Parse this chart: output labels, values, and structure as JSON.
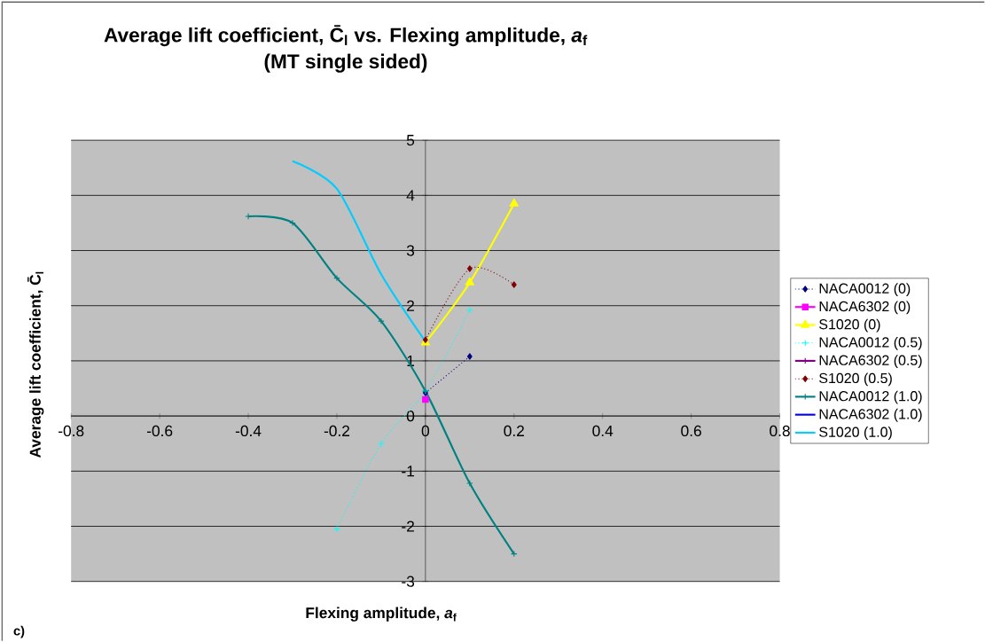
{
  "chart_data": {
    "type": "line",
    "title": "Average lift coefficient, C̄$_{l}$ vs. Flexing amplitude, *a*$_{f}$",
    "subtitle": "(MT single sided)",
    "xlabel": "Flexing amplitude, *a*$_{f}$",
    "ylabel": "Average lift coefficient, C̄$_{l}$",
    "annotations": [
      "c)"
    ],
    "xlim": [
      -0.8,
      0.8
    ],
    "xticks": [
      -0.8,
      -0.6,
      -0.4,
      -0.2,
      0,
      0.2,
      0.4,
      0.6,
      0.8
    ],
    "ylim": [
      -3,
      5
    ],
    "yticks": [
      -3,
      -2,
      -1,
      0,
      1,
      2,
      3,
      4,
      5
    ],
    "grid": "y",
    "legend": "right",
    "series": [
      {
        "name": "NACA0012 (0)",
        "color": "#000080",
        "marker": "diamond",
        "line_style": "dotted",
        "x": [
          0,
          0.1
        ],
        "values": [
          0.42,
          1.08
        ]
      },
      {
        "name": "NACA6302 (0)",
        "color": "#ff00ff",
        "marker": "square",
        "line_style": "solid",
        "x": [
          0
        ],
        "values": [
          0.3
        ]
      },
      {
        "name": "S1020 (0)",
        "color": "#ffff00",
        "marker": "triangle",
        "line_style": "solid",
        "x": [
          0,
          0.1,
          0.2
        ],
        "values": [
          1.33,
          2.42,
          3.85
        ]
      },
      {
        "name": "NACA0012 (0.5)",
        "color": "#00ffff",
        "marker": "cross",
        "line_style": "dotted",
        "x": [
          -0.2,
          -0.1,
          0,
          0.1
        ],
        "values": [
          -2.05,
          -0.5,
          0.45,
          1.92
        ]
      },
      {
        "name": "NACA6302 (0.5)",
        "color": "#800080",
        "marker": "cross",
        "line_style": "solid",
        "values": [
          null
        ]
      },
      {
        "name": "S1020 (0.5)",
        "color": "#800000",
        "marker": "diamond",
        "line_style": "dotted",
        "x": [
          0,
          0.1,
          0.2
        ],
        "values": [
          1.38,
          2.67,
          2.38
        ]
      },
      {
        "name": "NACA0012 (1.0)",
        "color": "#008080",
        "marker": "cross",
        "line_style": "solid",
        "x": [
          -0.4,
          -0.3,
          -0.2,
          -0.1,
          0,
          0.1,
          0.2
        ],
        "values": [
          3.62,
          3.5,
          2.5,
          1.72,
          0.45,
          -1.22,
          -2.5
        ]
      },
      {
        "name": "NACA6302 (1.0)",
        "color": "#0000ff",
        "marker": "none",
        "line_style": "solid",
        "values": [
          null
        ]
      },
      {
        "name": "S1020 (1.0)",
        "color": "#00ccff",
        "marker": "none",
        "line_style": "solid",
        "x": [
          -0.3,
          -0.2,
          -0.1,
          0
        ],
        "values": [
          4.62,
          4.12,
          2.57,
          1.35
        ]
      }
    ]
  }
}
